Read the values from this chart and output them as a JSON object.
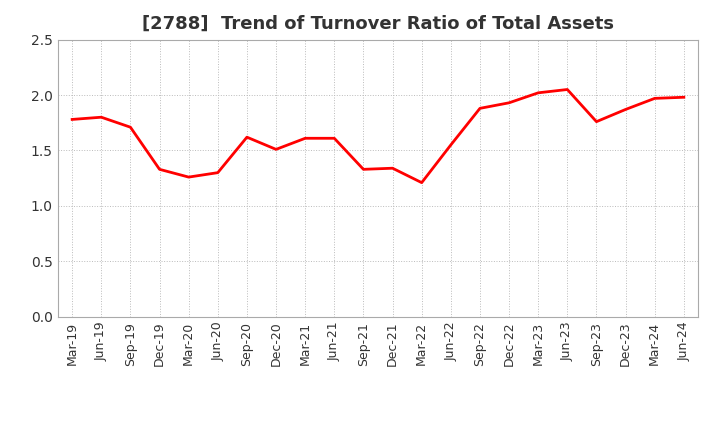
{
  "title": "[2788]  Trend of Turnover Ratio of Total Assets",
  "labels": [
    "Mar-19",
    "Jun-19",
    "Sep-19",
    "Dec-19",
    "Mar-20",
    "Jun-20",
    "Sep-20",
    "Dec-20",
    "Mar-21",
    "Jun-21",
    "Sep-21",
    "Dec-21",
    "Mar-22",
    "Jun-22",
    "Sep-22",
    "Dec-22",
    "Mar-23",
    "Jun-23",
    "Sep-23",
    "Dec-23",
    "Mar-24",
    "Jun-24"
  ],
  "values": [
    1.78,
    1.8,
    1.71,
    1.33,
    1.26,
    1.3,
    1.62,
    1.51,
    1.61,
    1.61,
    1.33,
    1.34,
    1.21,
    1.55,
    1.88,
    1.93,
    2.02,
    2.05,
    1.76,
    1.87,
    1.97,
    1.98
  ],
  "line_color": "#FF0000",
  "line_width": 2.0,
  "ylim": [
    0.0,
    2.5
  ],
  "yticks": [
    0.0,
    0.5,
    1.0,
    1.5,
    2.0,
    2.5
  ],
  "background_color": "#ffffff",
  "grid_color": "#bbbbbb",
  "title_fontsize": 13,
  "tick_fontsize": 9,
  "title_color": "#333333",
  "spine_color": "#aaaaaa"
}
